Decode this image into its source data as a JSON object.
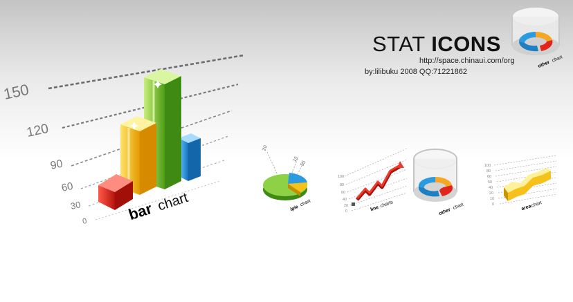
{
  "header": {
    "title_light": "STAT ",
    "title_bold": "ICONS",
    "url": "http://space.chinaui.com/org",
    "credit": "by:lilibuku 2008  QQ:71221862"
  },
  "icons": {
    "bar": {
      "label_bold": "bar",
      "label_light": " chart",
      "tick_labels": [
        "0",
        "30",
        "60",
        "90",
        "120",
        "150"
      ]
    },
    "pie": {
      "label_bold": "ipie",
      "label_light": " chart",
      "value_labels": [
        "20",
        "15",
        "55"
      ]
    },
    "line": {
      "label_bold": "line",
      "label_light": " charts",
      "tick_labels": [
        "0",
        "20",
        "40",
        "60",
        "80",
        "100"
      ]
    },
    "other": {
      "label_bold": "other",
      "label_light": " chart"
    },
    "area": {
      "label_bold": "area",
      "label_light": "chart",
      "tick_labels": [
        "0",
        "10",
        "20",
        "40",
        "50",
        "60",
        "80",
        "100"
      ]
    },
    "header_icon": {
      "label_bold": "other",
      "label_light": " chart"
    }
  },
  "colors": {
    "red": "#e0261c",
    "yellow": "#f4c21a",
    "green": "#86c93b",
    "blue": "#2a9be0",
    "orange": "#f5a623"
  }
}
